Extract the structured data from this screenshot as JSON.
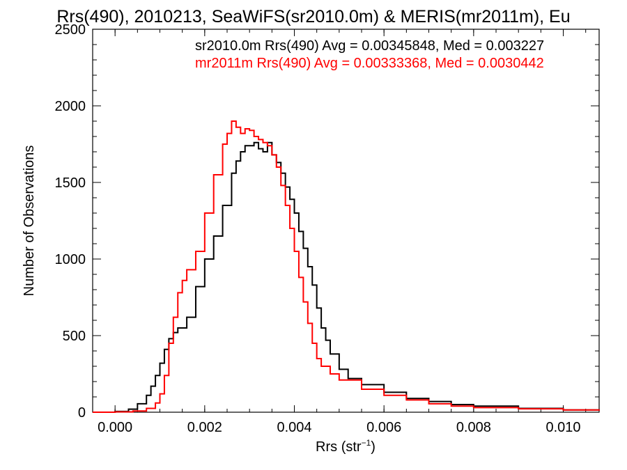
{
  "chart_data": {
    "type": "line",
    "title": "Rrs(490), 2010213, SeaWiFS(sr2010.0m) & MERIS(mr2011m), Eu",
    "xlabel": "Rrs (str",
    "xlabel_sup": "−1",
    "xlabel_close": ")",
    "ylabel": "Number of Observations",
    "xlim": [
      -0.0005,
      0.0108
    ],
    "ylim": [
      0,
      2500
    ],
    "x_ticks": [
      0.0,
      0.002,
      0.004,
      0.006,
      0.008,
      0.01
    ],
    "x_tick_labels": [
      "0.000",
      "0.002",
      "0.004",
      "0.006",
      "0.008",
      "0.010"
    ],
    "y_ticks": [
      0,
      500,
      1000,
      1500,
      2000,
      2500
    ],
    "y_tick_labels": [
      "0",
      "500",
      "1000",
      "1500",
      "2000",
      "2500"
    ],
    "grid": false,
    "annotations": [
      "sr2010.0m Rrs(490) Avg = 0.00345848, Med = 0.003227",
      "mr2011m Rrs(490) Avg = 0.00333368, Med = 0.0030442"
    ],
    "series": [
      {
        "color": "#000000",
        "x": [
          -0.0005,
          0.0,
          0.0003,
          0.0005,
          0.0007,
          0.0008,
          0.0009,
          0.001,
          0.0011,
          0.0012,
          0.0013,
          0.0014,
          0.0016,
          0.0018,
          0.002,
          0.0022,
          0.0024,
          0.0026,
          0.0027,
          0.0028,
          0.0029,
          0.003,
          0.0031,
          0.0032,
          0.0033,
          0.0034,
          0.0035,
          0.0036,
          0.0037,
          0.0038,
          0.0039,
          0.004,
          0.0041,
          0.0042,
          0.0043,
          0.0044,
          0.0045,
          0.0046,
          0.0047,
          0.0048,
          0.005,
          0.0052,
          0.0055,
          0.006,
          0.0065,
          0.007,
          0.0075,
          0.008,
          0.009,
          0.01,
          0.0108
        ],
        "y": [
          0,
          5,
          20,
          55,
          110,
          170,
          240,
          320,
          410,
          480,
          520,
          550,
          620,
          820,
          1000,
          1150,
          1350,
          1560,
          1640,
          1700,
          1740,
          1740,
          1760,
          1720,
          1700,
          1760,
          1680,
          1630,
          1560,
          1470,
          1390,
          1300,
          1180,
          1070,
          950,
          830,
          680,
          550,
          470,
          380,
          280,
          220,
          180,
          130,
          90,
          70,
          50,
          40,
          25,
          15,
          10
        ]
      },
      {
        "color": "#ff0000",
        "x": [
          -0.0005,
          0.0,
          0.0004,
          0.0007,
          0.0009,
          0.001,
          0.0011,
          0.0012,
          0.0013,
          0.0014,
          0.0015,
          0.0016,
          0.0018,
          0.002,
          0.0022,
          0.0024,
          0.0025,
          0.0026,
          0.0027,
          0.0028,
          0.0029,
          0.003,
          0.0031,
          0.0032,
          0.0033,
          0.0034,
          0.0035,
          0.0036,
          0.0037,
          0.0038,
          0.0039,
          0.004,
          0.0041,
          0.0042,
          0.0043,
          0.0044,
          0.0045,
          0.0046,
          0.0048,
          0.005,
          0.0055,
          0.006,
          0.0065,
          0.007,
          0.0075,
          0.008,
          0.009,
          0.01,
          0.0108
        ],
        "y": [
          0,
          2,
          8,
          25,
          60,
          120,
          240,
          450,
          620,
          780,
          860,
          930,
          1050,
          1300,
          1550,
          1750,
          1820,
          1900,
          1860,
          1820,
          1850,
          1840,
          1800,
          1780,
          1760,
          1740,
          1680,
          1600,
          1480,
          1350,
          1200,
          1050,
          880,
          720,
          580,
          450,
          350,
          300,
          250,
          210,
          150,
          110,
          80,
          55,
          40,
          30,
          22,
          15,
          10
        ]
      }
    ]
  }
}
